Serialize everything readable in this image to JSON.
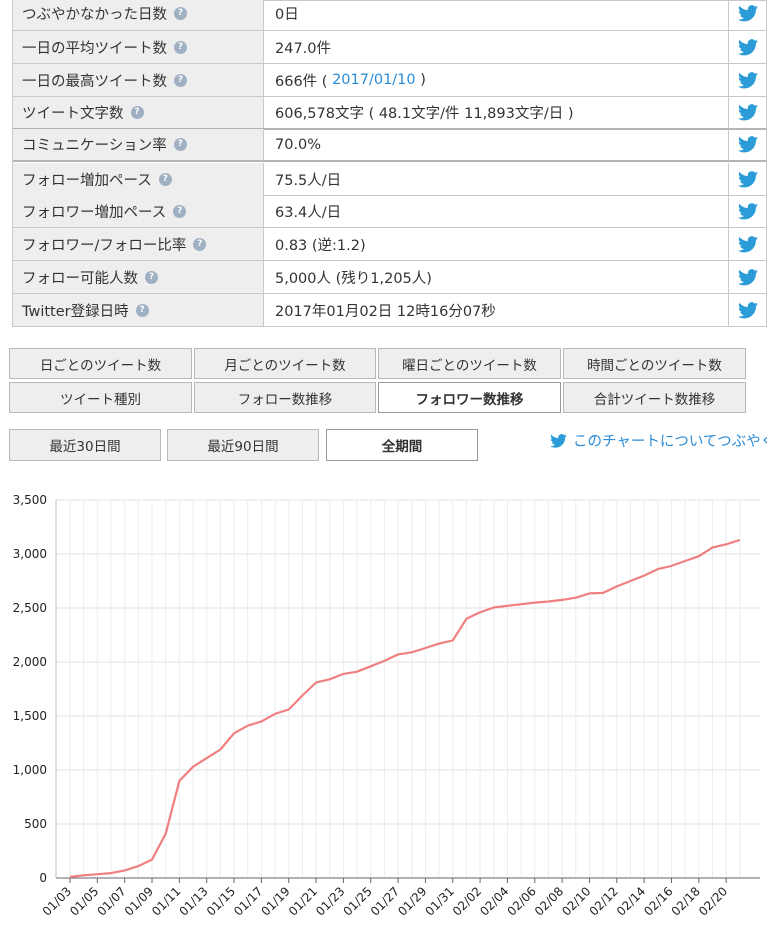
{
  "stats": [
    {
      "label": "つぶやかなかった日数",
      "value": "0日",
      "value_link": "",
      "value_tail": ""
    },
    {
      "label": "一日の平均ツイート数",
      "value": "247.0件",
      "value_link": "",
      "value_tail": ""
    },
    {
      "label": "一日の最高ツイート数",
      "value": "666件 ( ",
      "value_link": "2017/01/10",
      "value_tail": " )"
    },
    {
      "label": "ツイート文字数",
      "value": "606,578文字 ( 48.1文字/件 11,893文字/日 )",
      "value_link": "",
      "value_tail": ""
    },
    {
      "label": "コミュニケーション率",
      "value": "70.0%",
      "value_link": "",
      "value_tail": ""
    },
    {
      "label": "フォロー増加ペース",
      "value": "75.5人/日",
      "value_link": "",
      "value_tail": ""
    },
    {
      "label": "フォロワー増加ペース",
      "value": "63.4人/日",
      "value_link": "",
      "value_tail": ""
    },
    {
      "label": "フォロワー/フォロー比率",
      "value": "0.83 (逆:1.2)",
      "value_link": "",
      "value_tail": ""
    },
    {
      "label": "フォロー可能人数",
      "value": "5,000人 (残り1,205人)",
      "value_link": "",
      "value_tail": ""
    },
    {
      "label": "Twitter登録日時",
      "value": "2017年01月02日 12時16分07秒",
      "value_link": "",
      "value_tail": ""
    }
  ],
  "tabs": [
    {
      "label": "日ごとのツイート数",
      "active": false
    },
    {
      "label": "月ごとのツイート数",
      "active": false
    },
    {
      "label": "曜日ごとのツイート数",
      "active": false
    },
    {
      "label": "時間ごとのツイート数",
      "active": false
    },
    {
      "label": "ツイート種別",
      "active": false
    },
    {
      "label": "フォロー数推移",
      "active": false
    },
    {
      "label": "フォロワー数推移",
      "active": true
    },
    {
      "label": "合計ツイート数推移",
      "active": false
    }
  ],
  "ranges": [
    {
      "label": "最近30日間",
      "active": false
    },
    {
      "label": "最近90日間",
      "active": false
    },
    {
      "label": "全期間",
      "active": true
    }
  ],
  "share_label": "このチャートについてつぶやく",
  "colors": {
    "line": "#f08080",
    "twitter": "#2b9cd8",
    "link": "#2b8cd8"
  },
  "chart_data": {
    "type": "line",
    "title": "",
    "xlabel": "",
    "ylabel": "",
    "ylim": [
      0,
      3500
    ],
    "yticks": [
      0,
      500,
      1000,
      1500,
      2000,
      2500,
      3000,
      3500
    ],
    "ytick_labels": [
      "0",
      "500",
      "1,000",
      "1,500",
      "2,000",
      "2,500",
      "3,000",
      "3,500"
    ],
    "xtick_labels": [
      "01/03",
      "01/05",
      "01/07",
      "01/09",
      "01/11",
      "01/13",
      "01/15",
      "01/17",
      "01/19",
      "01/21",
      "01/23",
      "01/25",
      "01/27",
      "01/29",
      "01/31",
      "02/02",
      "02/04",
      "02/06",
      "02/08",
      "02/10",
      "02/12",
      "02/14",
      "02/16",
      "02/18",
      "02/20"
    ],
    "grid": true,
    "series": [
      {
        "name": "",
        "values": [
          10,
          25,
          35,
          45,
          70,
          110,
          170,
          410,
          900,
          1030,
          1110,
          1190,
          1340,
          1410,
          1450,
          1520,
          1560,
          1690,
          1810,
          1840,
          1890,
          1910,
          1960,
          2010,
          2070,
          2090,
          2130,
          2170,
          2200,
          2400,
          2460,
          2505,
          2520,
          2535,
          2550,
          2560,
          2575,
          2595,
          2635,
          2640,
          2700,
          2750,
          2800,
          2860,
          2890,
          2935,
          2980,
          3060,
          3090,
          3130
        ]
      }
    ]
  }
}
